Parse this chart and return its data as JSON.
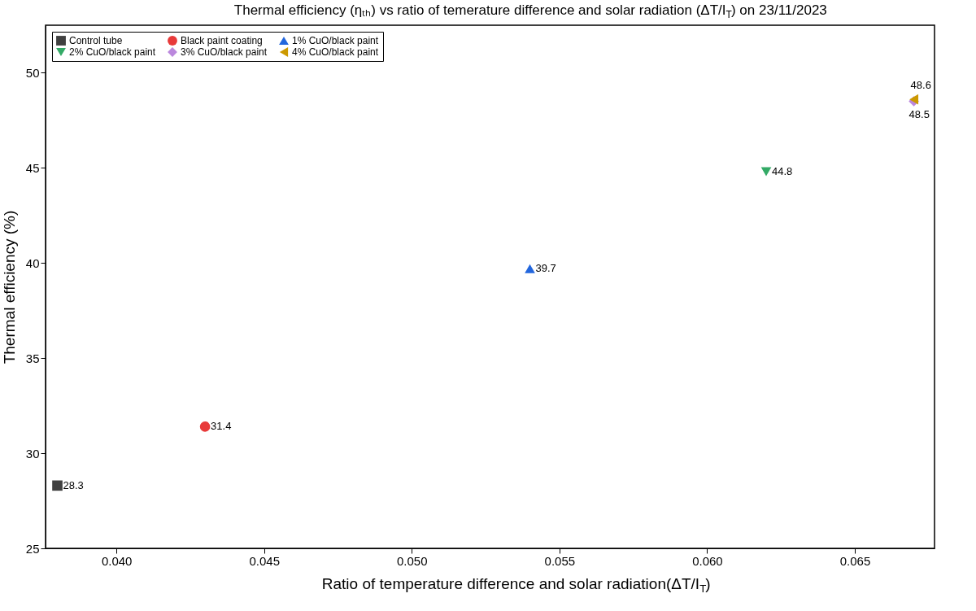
{
  "chart_data": {
    "type": "scatter",
    "title": "Thermal efficiency (ηₜₕ) vs ratio of temerature difference and solar radiation (ΔT/I$_{T}$) on 23/11/2023",
    "xlabel": "Ratio of temperature difference and solar radiation(ΔT/I$_{T}$)",
    "ylabel": "Thermal efficiency (%)",
    "xlim": [
      0.0376,
      0.0677
    ],
    "xticks": [
      {
        "value": 0.04,
        "label": "0.040"
      },
      0.045,
      {
        "value": 0.05,
        "label": "0.050"
      },
      0.055,
      {
        "value": 0.06,
        "label": "0.060"
      },
      0.065
    ],
    "ylim": [
      25,
      52.5
    ],
    "yticks": [
      25,
      30,
      35,
      40,
      45,
      50
    ],
    "grid": false,
    "legend": "top left",
    "data_labels": true,
    "series": [
      {
        "name": "Control tube",
        "color": "#404040",
        "marker": "square",
        "x": [
          0.038
        ],
        "values": [
          28.3
        ]
      },
      {
        "name": "Black paint coating",
        "color": "#e83a3a",
        "marker": "circle",
        "x": [
          0.043
        ],
        "values": [
          31.4
        ]
      },
      {
        "name": "1% CuO/black paint",
        "color": "#2266dd",
        "marker": "triangle-up",
        "x": [
          0.054
        ],
        "values": [
          39.7
        ]
      },
      {
        "name": "2% CuO/black paint",
        "color": "#33aa66",
        "marker": "triangle-down",
        "x": [
          0.062
        ],
        "values": [
          44.8
        ]
      },
      {
        "name": "3% CuO/black paint",
        "color": "#bb88dd",
        "marker": "diamond",
        "x": [
          0.067
        ],
        "values": [
          48.5
        ]
      },
      {
        "name": "4% CuO/black paint",
        "color": "#cc9900",
        "marker": "triangle-left",
        "x": [
          0.067
        ],
        "values": [
          48.6
        ]
      }
    ]
  }
}
